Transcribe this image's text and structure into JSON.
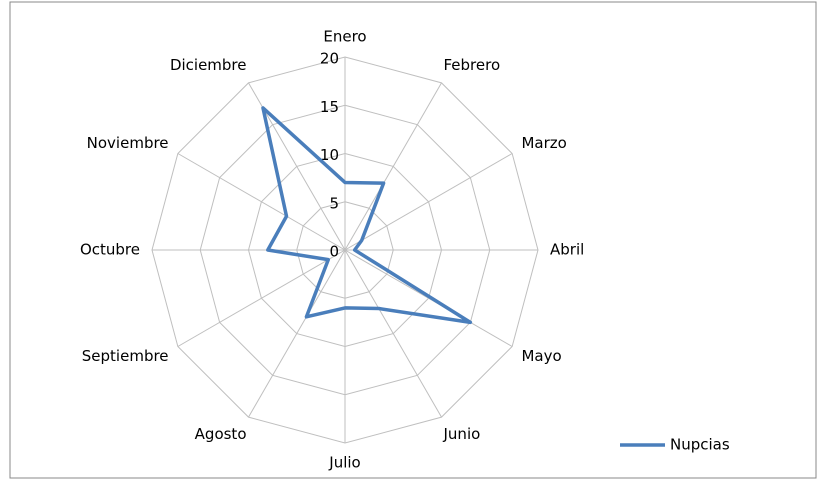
{
  "chart_data": {
    "type": "radar",
    "categories": [
      "Enero",
      "Febrero",
      "Marzo",
      "Abril",
      "Mayo",
      "Junio",
      "Julio",
      "Agosto",
      "Septiembre",
      "Octubre",
      "Noviembre",
      "Diciembre"
    ],
    "series": [
      {
        "name": "Nupcias",
        "color": "#4a7ebb",
        "values": [
          7,
          8,
          2,
          1,
          15,
          7,
          6,
          8,
          2,
          8,
          7,
          17
        ]
      }
    ],
    "ylim": [
      0,
      20
    ],
    "yticks": [
      0,
      5,
      10,
      15,
      20
    ],
    "grid": true,
    "legend": "right"
  }
}
